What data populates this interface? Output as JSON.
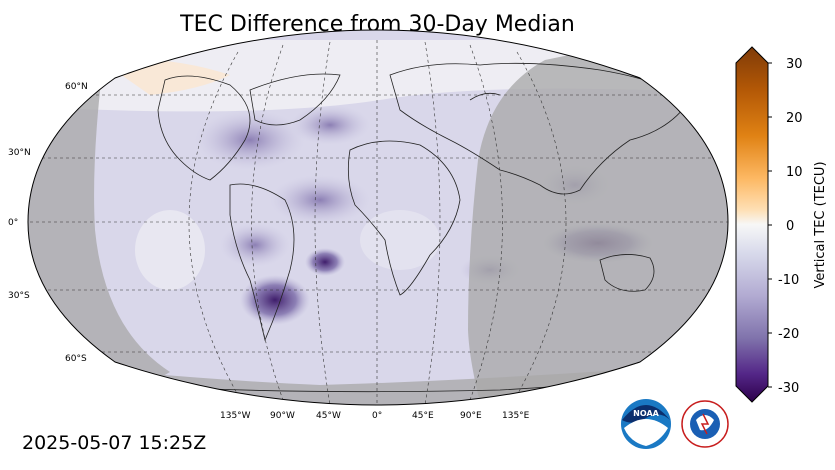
{
  "title": "TEC Difference from 30-Day Median",
  "timestamp": "2025-05-07 15:25Z",
  "colorbar": {
    "label": "Vertical TEC (TECU)",
    "ticks": [
      "30",
      "20",
      "10",
      "0",
      "-10",
      "-20",
      "-30"
    ]
  },
  "lat_labels": [
    "60°N",
    "30°N",
    "0°",
    "30°S",
    "60°S"
  ],
  "lon_labels": [
    "135°W",
    "90°W",
    "45°W",
    "0°",
    "45°E",
    "90°E",
    "135°E"
  ],
  "logos": {
    "noaa_text": "NOAA",
    "nws_text": "NATIONAL WEATHER SERVICE"
  },
  "colors": {
    "night_shade": "#a9a9a9",
    "strong_negative": "#3f1d6b",
    "negative": "#8c7fb4",
    "light_negative": "#d3d2e8",
    "neutral": "#f2f1f4",
    "positive": "#f6c79b",
    "strong_positive": "#7f3b08"
  }
}
